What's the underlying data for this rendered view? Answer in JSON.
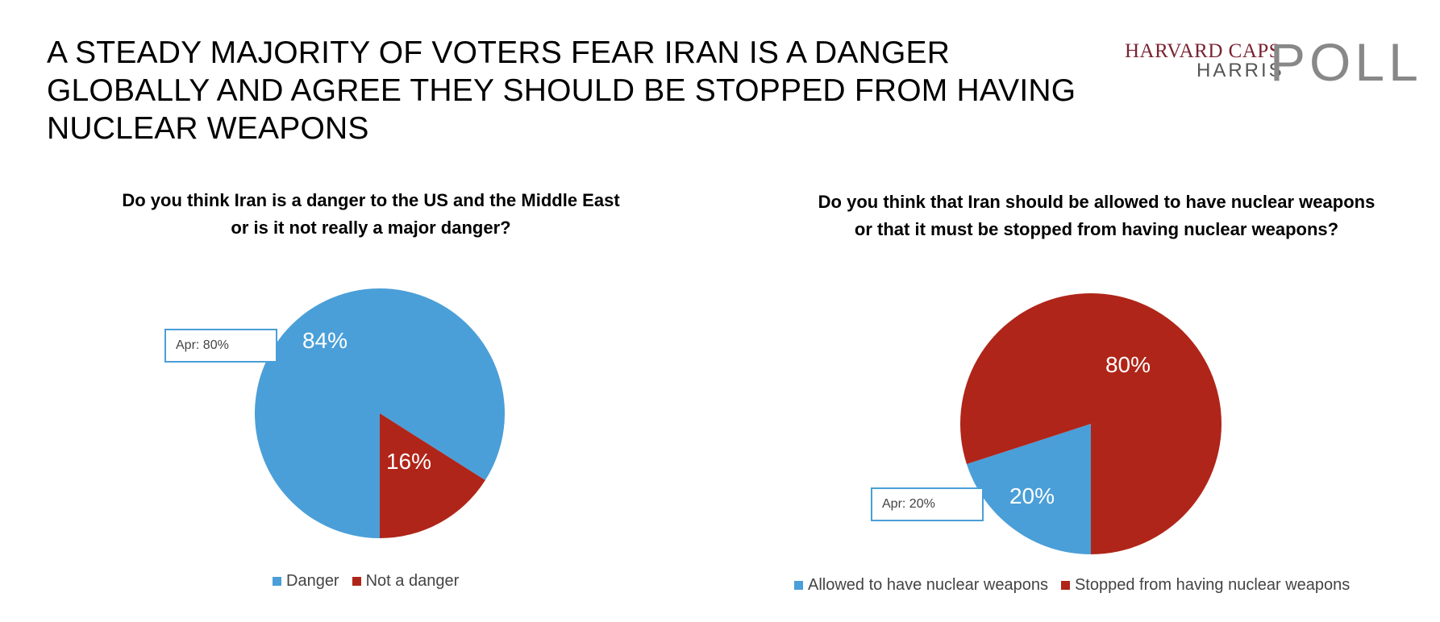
{
  "header": {
    "title": "A STEADY MAJORITY OF VOTERS FEAR IRAN IS A DANGER GLOBALLY AND AGREE THEY SHOULD BE STOPPED FROM HAVING NUCLEAR WEAPONS",
    "logo_top": "HARVARD CAPS",
    "logo_bottom": "HARRIS",
    "logo_poll": "POLL"
  },
  "colors": {
    "blue": "#4a9fd8",
    "red": "#b02519",
    "logo_red": "#7a2230"
  },
  "chart_data": [
    {
      "type": "pie",
      "title": "Do you think Iran is a danger to the US and the Middle East or is it not really a major danger?",
      "labels": [
        "Danger",
        "Not a danger"
      ],
      "values": [
        84,
        16
      ],
      "value_labels": [
        "84%",
        "16%"
      ],
      "colors": [
        "#4a9fd8",
        "#b02519"
      ],
      "annotation": "Apr: 80%",
      "legend": "bottom"
    },
    {
      "type": "pie",
      "title": "Do you think that Iran should be allowed to have nuclear weapons or that it must be stopped from having nuclear weapons?",
      "labels": [
        "Allowed to have nuclear weapons",
        "Stopped from having nuclear weapons"
      ],
      "values": [
        20,
        80
      ],
      "value_labels": [
        "20%",
        "80%"
      ],
      "colors": [
        "#4a9fd8",
        "#b02519"
      ],
      "annotation": "Apr: 20%",
      "legend": "bottom"
    }
  ]
}
